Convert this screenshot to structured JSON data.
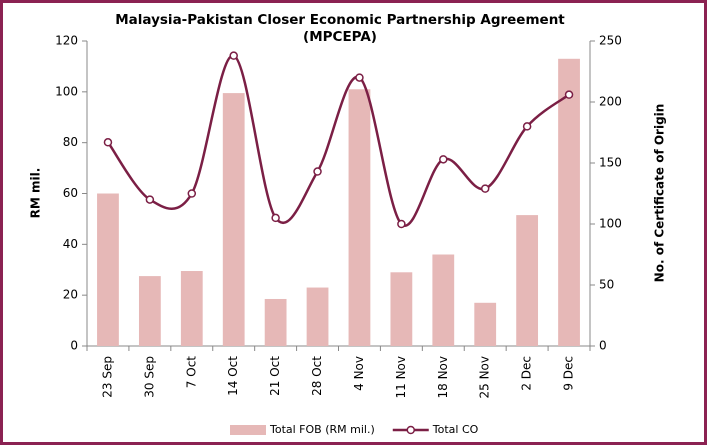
{
  "chart_data": {
    "type": "bar_line",
    "title": "Malaysia-Pakistan Closer Economic Partnership  Agreement",
    "subtitle": "(MPCEPA)",
    "y_label": "RM mil.",
    "y2_label": "No. of Certificate of Origin",
    "categories": [
      "23 Sep",
      "30 Sep",
      "7 Oct",
      "14 Oct",
      "21 Oct",
      "28 Oct",
      "4 Nov",
      "11 Nov",
      "18 Nov",
      "25 Nov",
      "2 Dec",
      "9 Dec"
    ],
    "series": [
      {
        "name": "Total FOB (RM mil.)",
        "type": "bar",
        "color": "#e6b8b7",
        "values": [
          60,
          27.5,
          29.5,
          99.5,
          18.5,
          23,
          101,
          29,
          36,
          17,
          51.5,
          113
        ]
      },
      {
        "name": "Total CO",
        "type": "line",
        "axis": "y2",
        "color": "#7b1f45",
        "values": [
          167,
          120,
          125,
          238,
          105,
          143,
          220,
          100,
          153,
          129,
          180,
          206
        ]
      }
    ],
    "ylim": [
      0,
      120
    ],
    "yticks": [
      0,
      20,
      40,
      60,
      80,
      100,
      120
    ],
    "y2lim": [
      0,
      250
    ],
    "y2ticks": [
      0,
      50,
      100,
      150,
      200,
      250
    ],
    "legend": "bottom"
  }
}
